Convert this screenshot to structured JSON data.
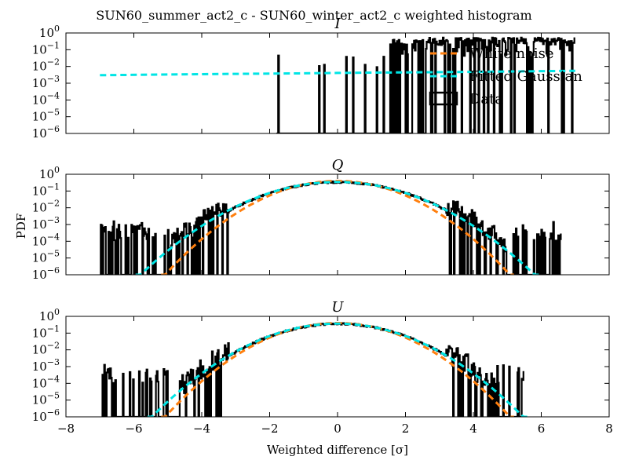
{
  "suptitle": "SUN60_summer_act2_c - SUN60_winter_act2_c weighted histogram",
  "xlabel": "Weighted difference [σ]",
  "ylabel": "PDF",
  "x_ticks": [
    "−8",
    "−6",
    "−4",
    "−2",
    "0",
    "2",
    "4",
    "6",
    "8"
  ],
  "y_ticks": [
    {
      "base": "10",
      "exp": "0"
    },
    {
      "base": "10",
      "exp": "-1"
    },
    {
      "base": "10",
      "exp": "-2"
    },
    {
      "base": "10",
      "exp": "-3"
    },
    {
      "base": "10",
      "exp": "-4"
    },
    {
      "base": "10",
      "exp": "-5"
    },
    {
      "base": "10",
      "exp": "-6"
    }
  ],
  "legend": {
    "placement": "top-right of first panel",
    "entries": [
      "White noise",
      "Fitted Gaussian",
      "Data"
    ]
  },
  "colors": {
    "white_noise": "#ff7f0e",
    "fitted_gaussian": "#00e5e5",
    "data": "#000000"
  },
  "chart_data": [
    {
      "type": "line",
      "title": "I",
      "xlim": [
        -8,
        8
      ],
      "ylim": [
        1e-06,
        1
      ],
      "yscale": "log",
      "data_hist": {
        "x_start": -1.8,
        "x_end": 7.0,
        "isolated_spikes": [
          -1.75,
          -0.55,
          -0.4,
          0.25,
          0.45,
          0.8,
          1.15,
          1.35,
          4.25,
          6.05,
          6.95
        ]
      },
      "series": [
        {
          "name": "Fitted Gaussian",
          "x": [
            -7,
            -5,
            -3,
            -1,
            0,
            1,
            3,
            5,
            7
          ],
          "y": [
            0.003,
            0.0033,
            0.0036,
            0.0039,
            0.0041,
            0.0043,
            0.0046,
            0.005,
            0.0055
          ]
        }
      ]
    },
    {
      "type": "line",
      "title": "Q",
      "xlim": [
        -8,
        8
      ],
      "ylim": [
        1e-06,
        1
      ],
      "yscale": "log",
      "data_hist": {
        "x_start": -7.0,
        "x_end": 6.6,
        "isolated_spikes": [
          -6.95,
          -6.6,
          -6.25,
          4.55,
          5.9,
          6.6
        ]
      },
      "gauss_sigma": 1.15,
      "white_sigma": 1.0
    },
    {
      "type": "line",
      "title": "U",
      "xlim": [
        -8,
        8
      ],
      "ylim": [
        1e-06,
        1
      ],
      "yscale": "log",
      "data_hist": {
        "x_start": -6.95,
        "x_end": 5.5,
        "isolated_spikes": [
          -6.95,
          -6.6,
          -5.75,
          5.3,
          5.5
        ]
      },
      "gauss_sigma": 1.08,
      "white_sigma": 1.0
    }
  ]
}
